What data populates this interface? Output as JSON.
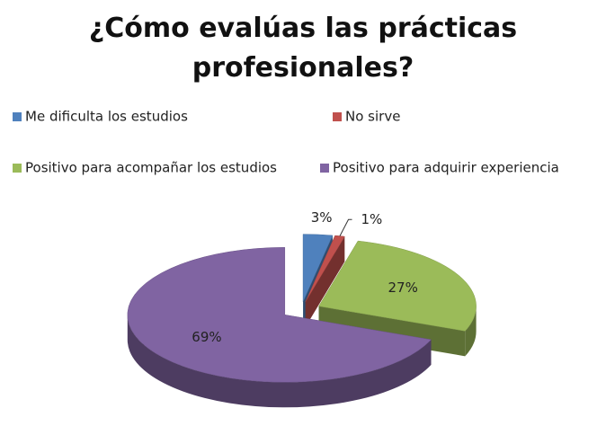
{
  "chart_data": {
    "type": "pie",
    "title": "¿Cómo evalúas las prácticas profesionales?",
    "categories": [
      "Me dificulta los estudios",
      "No sirve",
      "Positivo para acompañar los estudios",
      "Positivo para adquirir experiencia"
    ],
    "values": [
      3,
      1,
      27,
      69
    ],
    "value_labels": [
      "3%",
      "1%",
      "27%",
      "69%"
    ],
    "colors": [
      "#4f81bd",
      "#c0504d",
      "#9bbb59",
      "#8064a2"
    ],
    "legend": "top"
  }
}
